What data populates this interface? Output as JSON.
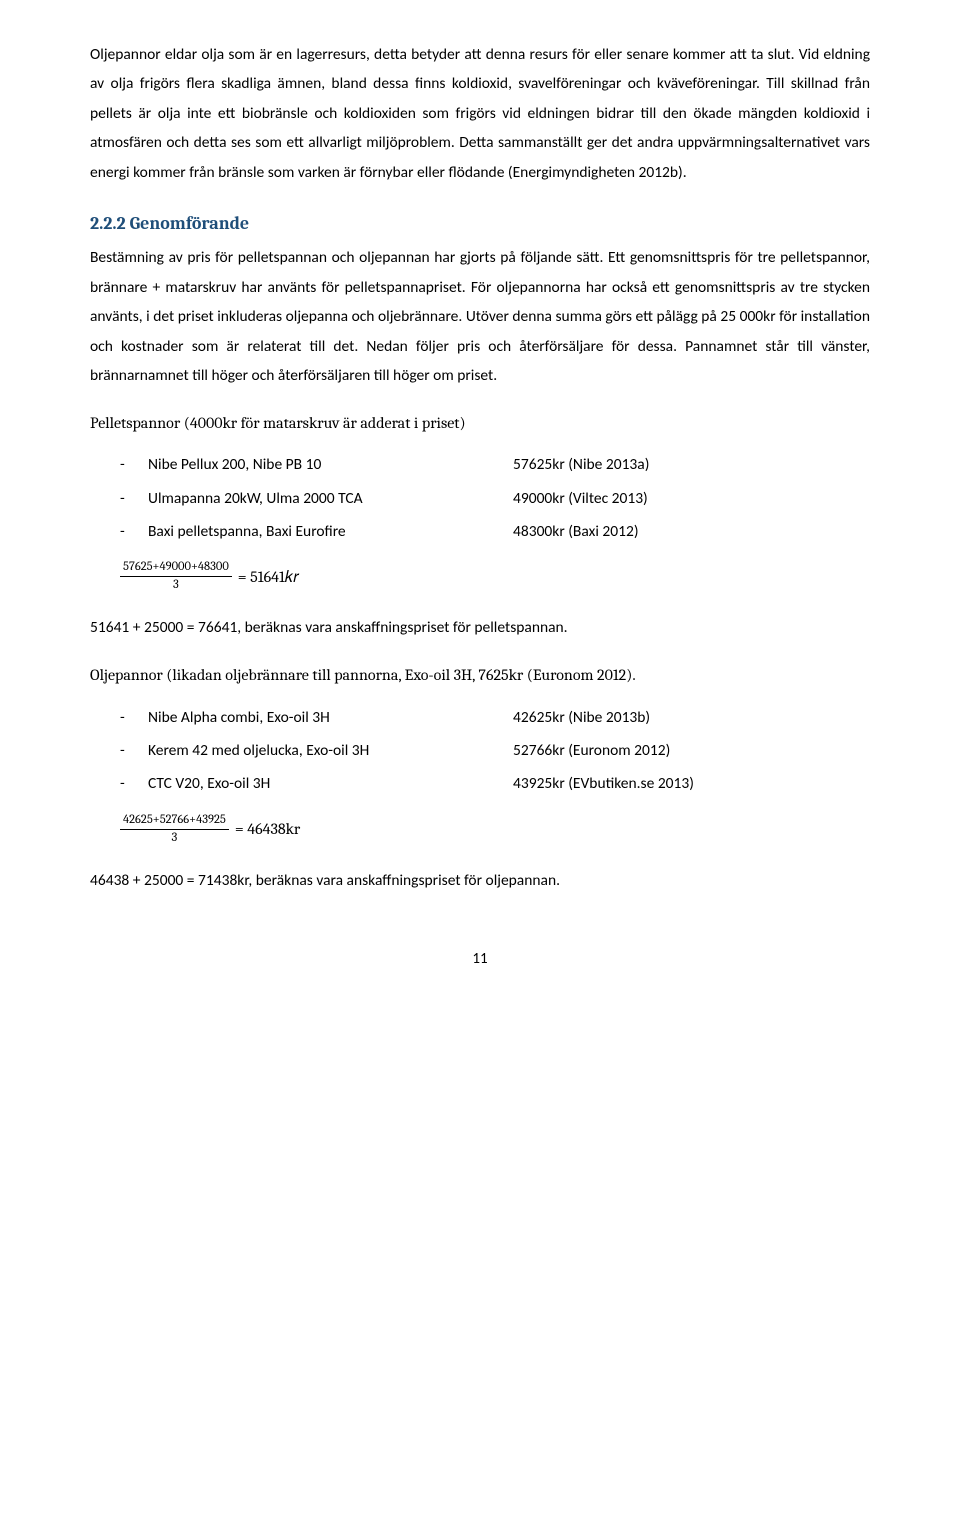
{
  "para1": "Oljepannor eldar olja som är en lagerresurs, detta betyder att denna resurs för eller senare kommer att ta slut. Vid eldning av olja frigörs flera skadliga ämnen, bland dessa finns koldioxid, svavelföreningar och kväveföreningar. Till skillnad från pellets är olja inte ett biobränsle och koldioxiden som frigörs vid eldningen bidrar till den ökade mängden koldioxid i atmosfären och detta ses som ett allvarligt miljöproblem. Detta sammanställt ger det andra uppvärmningsalternativet vars energi kommer från bränsle som varken är förnybar eller flödande (Energimyndigheten 2012b).",
  "heading": "2.2.2 Genomförande",
  "para2": "Bestämning av pris för pelletspannan och oljepannan har gjorts på följande sätt. Ett genomsnittspris för tre pelletspannor, brännare + matarskruv har använts för pelletspannapriset. För oljepannorna har också ett genomsnittspris av tre stycken använts, i det priset inkluderas oljepanna och oljebrännare. Utöver denna summa görs ett pålägg på 25 000kr för installation och kostnader som är relaterat till det. Nedan följer pris och återförsäljare för dessa. Pannamnet står till vänster, brännarnamnet till höger och återförsäljaren till höger om priset.",
  "subhead1": "Pelletspannor (4000kr för matarskruv är adderat i priset)",
  "pellets_items": [
    {
      "name": "Nibe Pellux 200, Nibe PB 10",
      "price": "57625kr (Nibe 2013a)"
    },
    {
      "name": "Ulmapanna 20kW, Ulma 2000 TCA",
      "price": "49000kr (Viltec 2013)"
    },
    {
      "name": "Baxi pelletspanna, Baxi Eurofire",
      "price": "48300kr (Baxi 2012)"
    }
  ],
  "formula1_top": "57625+49000+48300",
  "formula1_bot": "3",
  "formula1_result": "=  51641𝑘𝑟",
  "conclusion1": "51641 + 25000 = 76641, beräknas vara anskaffningspriset för pelletspannan.",
  "subhead2": "Oljepannor (likadan oljebrännare till pannorna, Exo-oil 3H, 7625kr (Euronom 2012).",
  "oil_items": [
    {
      "name": "Nibe Alpha combi, Exo-oil 3H",
      "price": "42625kr (Nibe 2013b)"
    },
    {
      "name": "Kerem 42 med oljelucka, Exo-oil 3H",
      "price": "52766kr (Euronom 2012)"
    },
    {
      "name": "CTC V20, Exo-oil 3H",
      "price": "43925kr (EVbutiken.se 2013)"
    }
  ],
  "formula2_top": "42625+52766+43925",
  "formula2_bot": "3",
  "formula2_result": "=  46438kr",
  "conclusion2": "46438 + 25000 = 71438kr, beräknas vara anskaffningspriset för oljepannan.",
  "page_num": "11",
  "dash": "-"
}
